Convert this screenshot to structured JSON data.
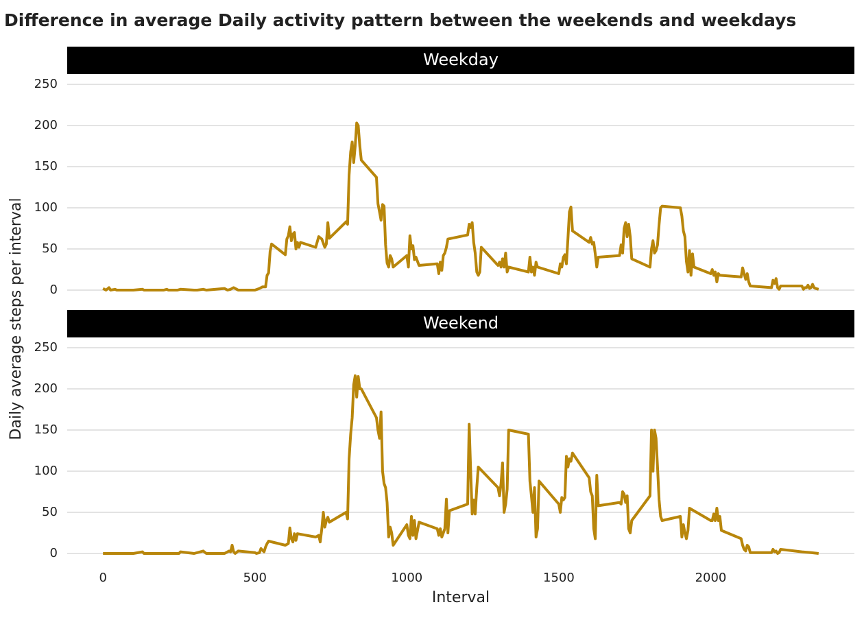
{
  "title": "Difference in average Daily activity pattern between the weekends and weekdays",
  "x_label": "Interval",
  "y_label": "Daily average steps per interval",
  "chart_data": [
    {
      "type": "line",
      "facet": "Weekday",
      "color": "#b8860b",
      "xlim": [
        -117.75,
        2472.75
      ],
      "ylim": [
        -11.7,
        262.5
      ],
      "yticks": [
        0,
        50,
        100,
        150,
        200,
        250
      ],
      "grid": true,
      "x": [
        0,
        10,
        20,
        25,
        40,
        45,
        100,
        130,
        135,
        200,
        210,
        215,
        245,
        255,
        300,
        310,
        330,
        340,
        400,
        410,
        420,
        430,
        440,
        445,
        500,
        515,
        525,
        535,
        540,
        545,
        550,
        555,
        600,
        605,
        610,
        615,
        620,
        625,
        630,
        635,
        640,
        645,
        650,
        700,
        710,
        720,
        730,
        735,
        740,
        745,
        800,
        805,
        810,
        815,
        820,
        825,
        830,
        835,
        840,
        845,
        850,
        900,
        905,
        910,
        915,
        920,
        925,
        930,
        935,
        940,
        945,
        950,
        955,
        1000,
        1005,
        1010,
        1015,
        1020,
        1025,
        1030,
        1040,
        1100,
        1105,
        1110,
        1115,
        1120,
        1125,
        1130,
        1135,
        1200,
        1205,
        1210,
        1215,
        1220,
        1225,
        1230,
        1235,
        1240,
        1245,
        1300,
        1305,
        1310,
        1315,
        1320,
        1325,
        1330,
        1335,
        1400,
        1405,
        1410,
        1415,
        1420,
        1425,
        1430,
        1500,
        1505,
        1510,
        1515,
        1520,
        1525,
        1530,
        1535,
        1540,
        1545,
        1600,
        1605,
        1610,
        1615,
        1620,
        1625,
        1630,
        1700,
        1705,
        1710,
        1715,
        1720,
        1725,
        1730,
        1735,
        1740,
        1800,
        1805,
        1810,
        1815,
        1820,
        1825,
        1830,
        1835,
        1840,
        1900,
        1905,
        1910,
        1915,
        1920,
        1925,
        1930,
        1935,
        1940,
        1945,
        2000,
        2005,
        2010,
        2015,
        2020,
        2025,
        2030,
        2100,
        2105,
        2110,
        2115,
        2120,
        2125,
        2130,
        2200,
        2205,
        2210,
        2215,
        2220,
        2225,
        2230,
        2300,
        2305,
        2310,
        2315,
        2320,
        2325,
        2330,
        2335,
        2340,
        2345,
        2355
      ],
      "values": [
        2,
        0,
        3,
        0,
        1,
        0,
        0,
        1,
        0,
        0,
        1,
        0,
        0,
        1,
        0,
        0,
        1,
        0,
        2,
        0,
        1,
        3,
        1,
        0,
        0,
        2,
        4,
        4,
        18,
        21,
        47,
        56,
        43,
        62,
        66,
        77,
        60,
        68,
        70,
        50,
        58,
        52,
        58,
        52,
        65,
        62,
        52,
        56,
        82,
        63,
        83,
        80,
        140,
        168,
        180,
        155,
        175,
        203,
        200,
        175,
        158,
        137,
        105,
        95,
        85,
        104,
        102,
        55,
        33,
        28,
        42,
        38,
        28,
        42,
        28,
        66,
        50,
        54,
        37,
        40,
        30,
        32,
        20,
        34,
        24,
        42,
        45,
        52,
        62,
        67,
        80,
        76,
        82,
        58,
        45,
        22,
        18,
        22,
        52,
        30,
        34,
        28,
        38,
        28,
        45,
        22,
        28,
        22,
        40,
        22,
        28,
        18,
        34,
        28,
        20,
        32,
        28,
        40,
        43,
        32,
        62,
        95,
        101,
        72,
        58,
        64,
        56,
        58,
        44,
        28,
        40,
        42,
        55,
        45,
        75,
        82,
        65,
        80,
        65,
        38,
        28,
        50,
        60,
        45,
        48,
        55,
        80,
        100,
        102,
        100,
        90,
        72,
        65,
        35,
        22,
        48,
        18,
        44,
        28,
        20,
        25,
        18,
        22,
        10,
        20,
        18,
        16,
        27,
        20,
        13,
        20,
        10,
        5,
        3,
        12,
        8,
        14,
        3,
        1,
        5,
        5,
        1,
        3,
        3,
        6,
        2,
        3,
        7,
        3,
        2,
        1
      ]
    },
    {
      "type": "line",
      "facet": "Weekend",
      "color": "#b8860b",
      "xlim": [
        -117.75,
        2472.75
      ],
      "ylim": [
        -11.7,
        262.5
      ],
      "yticks": [
        0,
        50,
        100,
        150,
        200,
        250
      ],
      "grid": true,
      "xticks": [
        0,
        500,
        1000,
        1500,
        2000
      ],
      "x": [
        0,
        100,
        130,
        135,
        200,
        250,
        255,
        300,
        330,
        340,
        400,
        415,
        420,
        425,
        430,
        435,
        445,
        500,
        505,
        515,
        520,
        525,
        530,
        535,
        540,
        545,
        600,
        610,
        615,
        620,
        625,
        630,
        635,
        640,
        700,
        710,
        715,
        720,
        725,
        730,
        735,
        740,
        745,
        800,
        805,
        810,
        815,
        820,
        825,
        830,
        835,
        840,
        845,
        850,
        900,
        905,
        910,
        915,
        920,
        925,
        930,
        935,
        940,
        945,
        950,
        955,
        1000,
        1005,
        1010,
        1015,
        1020,
        1025,
        1030,
        1035,
        1040,
        1100,
        1105,
        1110,
        1115,
        1120,
        1125,
        1130,
        1135,
        1140,
        1200,
        1205,
        1210,
        1215,
        1220,
        1225,
        1230,
        1235,
        1300,
        1305,
        1310,
        1315,
        1320,
        1325,
        1330,
        1335,
        1400,
        1405,
        1410,
        1415,
        1420,
        1425,
        1430,
        1435,
        1500,
        1505,
        1510,
        1515,
        1520,
        1525,
        1530,
        1535,
        1540,
        1545,
        1600,
        1605,
        1610,
        1615,
        1620,
        1625,
        1630,
        1700,
        1705,
        1710,
        1715,
        1720,
        1725,
        1730,
        1735,
        1740,
        1800,
        1805,
        1810,
        1815,
        1820,
        1825,
        1830,
        1835,
        1840,
        1900,
        1905,
        1910,
        1915,
        1920,
        1925,
        1930,
        2000,
        2005,
        2010,
        2015,
        2020,
        2025,
        2030,
        2035,
        2100,
        2105,
        2110,
        2115,
        2120,
        2125,
        2130,
        2200,
        2205,
        2210,
        2215,
        2220,
        2225,
        2230,
        2300,
        2330,
        2355
      ],
      "values": [
        0,
        0,
        2,
        0,
        0,
        0,
        2,
        0,
        3,
        0,
        0,
        3,
        2,
        10,
        2,
        0,
        3,
        1,
        0,
        1,
        6,
        4,
        2,
        8,
        12,
        15,
        10,
        12,
        31,
        18,
        14,
        24,
        16,
        24,
        20,
        22,
        14,
        30,
        50,
        32,
        40,
        44,
        38,
        50,
        42,
        115,
        145,
        165,
        205,
        216,
        190,
        215,
        200,
        200,
        165,
        150,
        140,
        172,
        100,
        85,
        80,
        62,
        20,
        32,
        25,
        10,
        35,
        22,
        18,
        45,
        22,
        40,
        18,
        28,
        38,
        30,
        22,
        30,
        20,
        25,
        30,
        66,
        25,
        52,
        60,
        157,
        100,
        48,
        65,
        48,
        80,
        105,
        80,
        70,
        85,
        110,
        50,
        60,
        78,
        150,
        145,
        88,
        70,
        50,
        80,
        20,
        30,
        88,
        60,
        50,
        68,
        65,
        68,
        118,
        105,
        115,
        112,
        122,
        92,
        75,
        70,
        30,
        18,
        95,
        58,
        62,
        60,
        75,
        72,
        62,
        70,
        30,
        25,
        40,
        70,
        150,
        100,
        150,
        140,
        105,
        65,
        45,
        40,
        45,
        20,
        35,
        25,
        18,
        28,
        55,
        40,
        40,
        48,
        40,
        55,
        40,
        45,
        28,
        18,
        10,
        5,
        3,
        10,
        8,
        1,
        1,
        5,
        2,
        3,
        0,
        1,
        5,
        2,
        1,
        0
      ]
    }
  ]
}
